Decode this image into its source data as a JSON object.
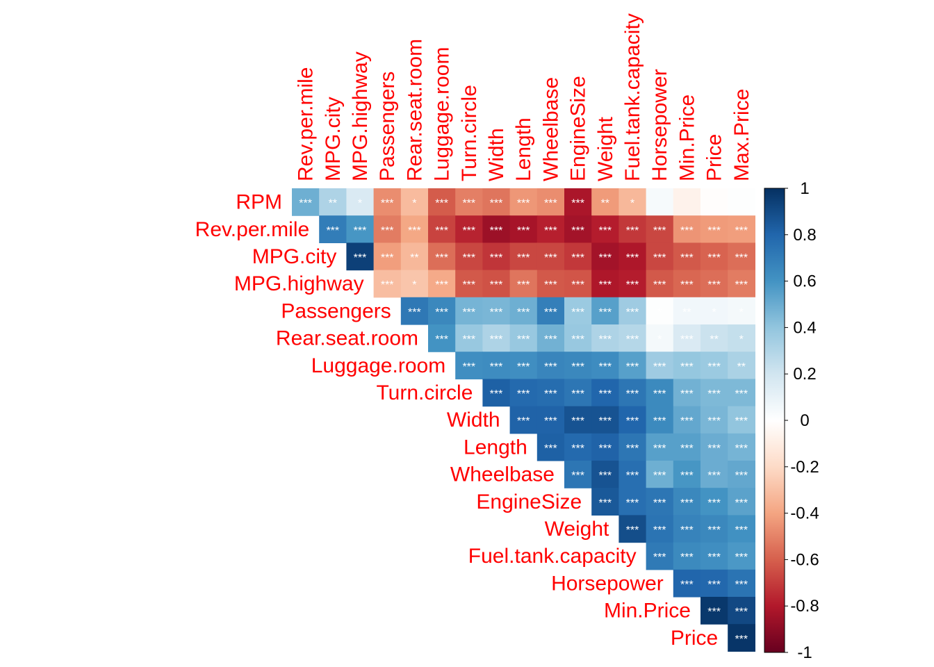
{
  "chart_data": {
    "type": "heatmap",
    "subtype": "correlation-upper-triangle",
    "variables": [
      "RPM",
      "Rev.per.mile",
      "MPG.city",
      "MPG.highway",
      "Passengers",
      "Rear.seat.room",
      "Luggage.room",
      "Turn.circle",
      "Width",
      "Length",
      "Wheelbase",
      "EngineSize",
      "Weight",
      "Fuel.tank.capacity",
      "Horsepower",
      "Min.Price",
      "Price",
      "Max.Price"
    ],
    "matrix": [
      [
        1.0,
        0.49,
        0.31,
        0.16,
        -0.47,
        -0.32,
        -0.61,
        -0.51,
        -0.54,
        -0.44,
        -0.47,
        -0.82,
        -0.43,
        -0.33,
        0.04,
        -0.07,
        -0.01,
        0.01
      ],
      [
        0.49,
        1.0,
        0.7,
        0.59,
        -0.52,
        -0.39,
        -0.68,
        -0.77,
        -0.86,
        -0.83,
        -0.78,
        -0.84,
        -0.79,
        -0.71,
        -0.67,
        -0.45,
        -0.43,
        -0.42
      ],
      [
        0.31,
        0.7,
        1.0,
        0.94,
        -0.42,
        -0.33,
        -0.56,
        -0.67,
        -0.72,
        -0.67,
        -0.67,
        -0.71,
        -0.84,
        -0.81,
        -0.67,
        -0.62,
        -0.59,
        -0.56
      ],
      [
        0.16,
        0.59,
        0.94,
        1.0,
        -0.31,
        -0.28,
        -0.38,
        -0.62,
        -0.64,
        -0.54,
        -0.62,
        -0.63,
        -0.81,
        -0.79,
        -0.62,
        -0.58,
        -0.56,
        -0.52
      ],
      [
        -0.47,
        -0.52,
        -0.42,
        -0.31,
        1.0,
        0.72,
        0.65,
        0.47,
        0.46,
        0.49,
        0.69,
        0.37,
        0.55,
        0.36,
        0.01,
        0.06,
        0.06,
        0.05
      ],
      [
        -0.32,
        -0.39,
        -0.33,
        -0.28,
        0.72,
        1.0,
        0.6,
        0.38,
        0.31,
        0.38,
        0.48,
        0.38,
        0.31,
        0.29,
        0.05,
        0.16,
        0.22,
        0.24
      ],
      [
        -0.61,
        -0.68,
        -0.56,
        -0.38,
        0.65,
        0.6,
        1.0,
        0.62,
        0.63,
        0.62,
        0.66,
        0.65,
        0.63,
        0.55,
        0.36,
        0.39,
        0.37,
        0.32
      ],
      [
        -0.51,
        -0.77,
        -0.67,
        -0.62,
        0.47,
        0.38,
        0.62,
        1.0,
        0.82,
        0.78,
        0.77,
        0.73,
        0.8,
        0.73,
        0.64,
        0.48,
        0.45,
        0.45
      ],
      [
        -0.54,
        -0.86,
        -0.72,
        -0.64,
        0.46,
        0.31,
        0.63,
        0.82,
        1.0,
        0.81,
        0.81,
        0.87,
        0.87,
        0.8,
        0.64,
        0.52,
        0.46,
        0.4
      ],
      [
        -0.44,
        -0.83,
        -0.67,
        -0.54,
        0.49,
        0.38,
        0.62,
        0.78,
        0.81,
        1.0,
        0.82,
        0.78,
        0.81,
        0.73,
        0.55,
        0.55,
        0.5,
        0.47
      ],
      [
        -0.47,
        -0.78,
        -0.67,
        -0.62,
        0.69,
        0.48,
        0.66,
        0.77,
        0.81,
        0.82,
        1.0,
        0.73,
        0.87,
        0.76,
        0.49,
        0.59,
        0.5,
        0.52
      ],
      [
        -0.82,
        -0.84,
        -0.71,
        -0.63,
        0.37,
        0.38,
        0.65,
        0.73,
        0.87,
        0.78,
        0.73,
        1.0,
        0.85,
        0.76,
        0.73,
        0.65,
        0.6,
        0.54
      ],
      [
        -0.43,
        -0.79,
        -0.84,
        -0.81,
        0.55,
        0.31,
        0.63,
        0.8,
        0.87,
        0.81,
        0.87,
        0.85,
        1.0,
        0.89,
        0.74,
        0.67,
        0.65,
        0.61
      ],
      [
        -0.33,
        -0.71,
        -0.81,
        -0.79,
        0.36,
        0.29,
        0.55,
        0.73,
        0.8,
        0.73,
        0.76,
        0.76,
        0.89,
        1.0,
        0.71,
        0.64,
        0.62,
        0.58
      ],
      [
        0.04,
        -0.67,
        -0.67,
        -0.62,
        0.01,
        0.05,
        0.36,
        0.64,
        0.64,
        0.55,
        0.49,
        0.73,
        0.74,
        0.71,
        1.0,
        0.8,
        0.79,
        0.74
      ],
      [
        -0.07,
        -0.45,
        -0.62,
        -0.58,
        0.06,
        0.16,
        0.39,
        0.48,
        0.52,
        0.55,
        0.59,
        0.65,
        0.67,
        0.64,
        0.8,
        1.0,
        0.97,
        0.91
      ],
      [
        -0.01,
        -0.43,
        -0.59,
        -0.56,
        0.06,
        0.22,
        0.37,
        0.45,
        0.46,
        0.5,
        0.5,
        0.6,
        0.65,
        0.62,
        0.79,
        0.97,
        1.0,
        0.98
      ],
      [
        0.01,
        -0.42,
        -0.56,
        -0.52,
        0.05,
        0.24,
        0.32,
        0.45,
        0.4,
        0.47,
        0.52,
        0.54,
        0.61,
        0.58,
        0.74,
        0.91,
        0.98,
        1.0
      ]
    ],
    "significance": [
      [
        "",
        "***",
        "**",
        "*",
        "***",
        "*",
        "***",
        "***",
        "***",
        "***",
        "***",
        "***",
        "**",
        "*",
        "",
        "",
        "",
        ""
      ],
      [
        "",
        "",
        "***",
        "***",
        "***",
        "***",
        "***",
        "***",
        "***",
        "***",
        "***",
        "***",
        "***",
        "***",
        "***",
        "***",
        "***",
        "***"
      ],
      [
        "",
        "",
        "",
        "***",
        "***",
        "**",
        "***",
        "***",
        "***",
        "***",
        "***",
        "***",
        "***",
        "***",
        "***",
        "***",
        "***",
        "***"
      ],
      [
        "",
        "",
        "",
        "",
        "***",
        "*",
        "***",
        "***",
        "***",
        "***",
        "***",
        "***",
        "***",
        "***",
        "***",
        "***",
        "***",
        "***"
      ],
      [
        "",
        "",
        "",
        "",
        "",
        "***",
        "***",
        "***",
        "***",
        "***",
        "***",
        "***",
        "***",
        "***",
        "*",
        "**",
        "*",
        "*"
      ],
      [
        "",
        "",
        "",
        "",
        "",
        "",
        "***",
        "***",
        "***",
        "***",
        "***",
        "***",
        "***",
        "***",
        "*",
        "***",
        "**",
        "*"
      ],
      [
        "",
        "",
        "",
        "",
        "",
        "",
        "",
        "***",
        "***",
        "***",
        "***",
        "***",
        "***",
        "***",
        "***",
        "***",
        "***",
        "**"
      ],
      [
        "",
        "",
        "",
        "",
        "",
        "",
        "",
        "",
        "***",
        "***",
        "***",
        "***",
        "***",
        "***",
        "***",
        "***",
        "***",
        "***"
      ],
      [
        "",
        "",
        "",
        "",
        "",
        "",
        "",
        "",
        "",
        "***",
        "***",
        "***",
        "***",
        "***",
        "***",
        "***",
        "***",
        "***"
      ],
      [
        "",
        "",
        "",
        "",
        "",
        "",
        "",
        "",
        "",
        "",
        "***",
        "***",
        "***",
        "***",
        "***",
        "***",
        "***",
        "***"
      ],
      [
        "",
        "",
        "",
        "",
        "",
        "",
        "",
        "",
        "",
        "",
        "",
        "***",
        "***",
        "***",
        "***",
        "***",
        "***",
        "***"
      ],
      [
        "",
        "",
        "",
        "",
        "",
        "",
        "",
        "",
        "",
        "",
        "",
        "",
        "***",
        "***",
        "***",
        "***",
        "***",
        "***"
      ],
      [
        "",
        "",
        "",
        "",
        "",
        "",
        "",
        "",
        "",
        "",
        "",
        "",
        "",
        "***",
        "***",
        "***",
        "***",
        "***"
      ],
      [
        "",
        "",
        "",
        "",
        "",
        "",
        "",
        "",
        "",
        "",
        "",
        "",
        "",
        "",
        "***",
        "***",
        "***",
        "***"
      ],
      [
        "",
        "",
        "",
        "",
        "",
        "",
        "",
        "",
        "",
        "",
        "",
        "",
        "",
        "",
        "",
        "***",
        "***",
        "***"
      ],
      [
        "",
        "",
        "",
        "",
        "",
        "",
        "",
        "",
        "",
        "",
        "",
        "",
        "",
        "",
        "",
        "",
        "***",
        "***"
      ],
      [
        "",
        "",
        "",
        "",
        "",
        "",
        "",
        "",
        "",
        "",
        "",
        "",
        "",
        "",
        "",
        "",
        "",
        "***"
      ],
      [
        "",
        "",
        "",
        "",
        "",
        "",
        "",
        "",
        "",
        "",
        "",
        "",
        "",
        "",
        "",
        "",
        "",
        ""
      ]
    ],
    "legend": {
      "position": "right",
      "ticks": [
        "1",
        "0.8",
        "0.6",
        "0.4",
        "0.2",
        "0",
        "-0.2",
        "-0.4",
        "-0.6",
        "-0.8",
        "-1"
      ],
      "range": [
        -1,
        1
      ]
    },
    "colorscale": [
      "#67001F",
      "#B2182B",
      "#D6604D",
      "#F4A582",
      "#FDDBC7",
      "#FFFFFF",
      "#D1E5F0",
      "#92C5DE",
      "#4393C3",
      "#2166AC",
      "#053061"
    ],
    "label_color": "#FF0000",
    "significance_mark_color": "#FFFFFF"
  }
}
